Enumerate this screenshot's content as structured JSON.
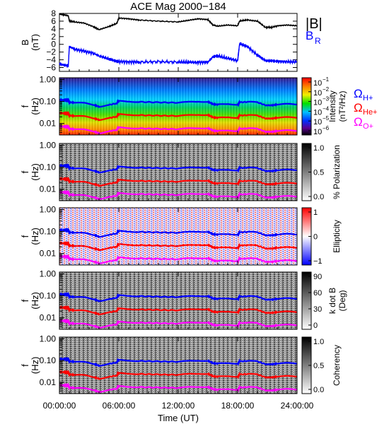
{
  "figure": {
    "title": "ACE Mag 2000−184",
    "xlabel": "Time (UT)",
    "xticks": [
      "00:00:00",
      "06:00:00",
      "12:00:00",
      "18:00:00",
      "24:00:00"
    ]
  },
  "chart_data": [
    {
      "type": "line",
      "ylabel": "B",
      "yunit": "(nT)",
      "ylim": [
        -7,
        8
      ],
      "yticks": [
        "−6",
        "−4",
        "−2",
        "0",
        "2",
        "4",
        "6",
        "8"
      ],
      "xlim": [
        0,
        24
      ],
      "series": [
        {
          "name": "|B|",
          "color": "#000000",
          "x": [
            0,
            0.5,
            0.9,
            1.0,
            1.5,
            2.5,
            3.5,
            4.0,
            5.0,
            5.8,
            6.0,
            7.0,
            8.0,
            10.0,
            12.0,
            13.0,
            14.0,
            15.0,
            15.5,
            16.0,
            17.0,
            18.0,
            18.2,
            19.0,
            20.0,
            20.8,
            21.5,
            22.0,
            23.0,
            24.0
          ],
          "y": [
            7.8,
            7.6,
            7.4,
            6.0,
            5.8,
            5.5,
            4.5,
            3.8,
            4.6,
            5.4,
            6.8,
            6.6,
            6.3,
            6.0,
            5.8,
            6.2,
            6.6,
            6.4,
            5.0,
            4.7,
            5.0,
            4.8,
            6.0,
            6.3,
            6.0,
            4.4,
            4.4,
            4.8,
            5.0,
            4.8
          ]
        },
        {
          "name": "B_R",
          "color": "#0000ff",
          "x": [
            0,
            0.5,
            0.9,
            1.0,
            1.5,
            2.5,
            3.5,
            4.0,
            5.0,
            5.8,
            6.0,
            7.0,
            8.0,
            10.0,
            12.0,
            13.0,
            14.0,
            15.0,
            15.5,
            16.0,
            17.0,
            18.0,
            18.2,
            19.0,
            20.0,
            20.8,
            21.5,
            22.0,
            23.0,
            24.0
          ],
          "y": [
            -5.0,
            -5.4,
            -5.6,
            -0.6,
            -1.2,
            -1.8,
            -2.4,
            -3.0,
            -3.8,
            -4.4,
            -4.5,
            -4.6,
            -4.6,
            -4.5,
            -4.6,
            -4.6,
            -4.7,
            -4.6,
            -3.2,
            -3.0,
            -3.6,
            -4.2,
            0.2,
            -0.6,
            -2.8,
            -4.2,
            -4.3,
            -4.4,
            -4.5,
            -4.5
          ]
        }
      ],
      "legend": [
        "|B|",
        "B",
        "R"
      ]
    },
    {
      "type": "heatmap",
      "ylabel": "f",
      "yunit": "(Hz)",
      "yscale": "log",
      "ylim": [
        0.003,
        1.2
      ],
      "yticks": [
        "1.00",
        "0.10",
        "0.01"
      ],
      "colormap": "rainbow",
      "colorbar": {
        "label": "Intensity",
        "unit": "(nT²/Hz)",
        "base": "10",
        "ticks": [
          "−1",
          "−2",
          "−3",
          "−4",
          "−5",
          "−6"
        ]
      },
      "gyro_legend": [
        {
          "name": "H+",
          "color": "#0000ff"
        },
        {
          "name": "He+",
          "color": "#ff0000"
        },
        {
          "name": "O+",
          "color": "#ff00ff"
        }
      ]
    },
    {
      "type": "heatmap",
      "ylabel": "f",
      "yunit": "(Hz)",
      "yscale": "log",
      "ylim": [
        0.003,
        1.2
      ],
      "yticks": [
        "1.00",
        "0.10",
        "0.01"
      ],
      "colormap": "gray",
      "colorbar": {
        "label": "% Polarization",
        "ticks": [
          "1.0",
          "0.5",
          "0.0"
        ]
      }
    },
    {
      "type": "heatmap",
      "ylabel": "f",
      "yunit": "(Hz)",
      "yscale": "log",
      "ylim": [
        0.003,
        1.2
      ],
      "yticks": [
        "1.00",
        "0.10",
        "0.01"
      ],
      "colormap": "bwr",
      "colorbar": {
        "label": "Ellipticity",
        "ticks": [
          "1",
          "0",
          "−1"
        ]
      }
    },
    {
      "type": "heatmap",
      "ylabel": "f",
      "yunit": "(Hz)",
      "yscale": "log",
      "ylim": [
        0.003,
        1.2
      ],
      "yticks": [
        "1.00",
        "0.10",
        "0.01"
      ],
      "colormap": "gray",
      "colorbar": {
        "label": "k dot B",
        "unit": "(Deg)",
        "ticks": [
          "90",
          "60",
          "30",
          "0"
        ]
      }
    },
    {
      "type": "heatmap",
      "ylabel": "f",
      "yunit": "(Hz)",
      "yscale": "log",
      "ylim": [
        0.003,
        1.2
      ],
      "yticks": [
        "1.00",
        "0.10",
        "0.01"
      ],
      "colormap": "gray",
      "colorbar": {
        "label": "Coherency",
        "ticks": [
          "1.0",
          "0.5",
          "0.0"
        ]
      }
    }
  ],
  "gyro_lines": {
    "x": [
      0,
      0.5,
      0.9,
      1.0,
      1.5,
      2.5,
      3.5,
      4.0,
      5.0,
      5.8,
      6.0,
      7.0,
      8.0,
      10.0,
      12.0,
      13.0,
      14.0,
      15.0,
      15.5,
      16.0,
      17.0,
      18.0,
      18.2,
      19.0,
      20.0,
      20.8,
      21.5,
      22.0,
      23.0,
      24.0
    ],
    "H+": [
      0.118,
      0.116,
      0.113,
      0.092,
      0.089,
      0.084,
      0.069,
      0.058,
      0.07,
      0.082,
      0.104,
      0.1,
      0.096,
      0.091,
      0.088,
      0.094,
      0.1,
      0.097,
      0.076,
      0.072,
      0.076,
      0.073,
      0.091,
      0.096,
      0.091,
      0.067,
      0.067,
      0.073,
      0.076,
      0.073
    ],
    "He+": [
      0.03,
      0.029,
      0.028,
      0.023,
      0.022,
      0.021,
      0.017,
      0.0146,
      0.0176,
      0.0206,
      0.026,
      0.025,
      0.024,
      0.0228,
      0.022,
      0.0236,
      0.025,
      0.0244,
      0.019,
      0.018,
      0.019,
      0.0183,
      0.0228,
      0.024,
      0.0228,
      0.0168,
      0.0168,
      0.0183,
      0.019,
      0.0183
    ],
    "O+": [
      0.0074,
      0.0072,
      0.007,
      0.0057,
      0.0055,
      0.0052,
      0.0043,
      0.0036,
      0.0044,
      0.0051,
      0.0065,
      0.0062,
      0.006,
      0.0057,
      0.0055,
      0.0059,
      0.0062,
      0.0061,
      0.0048,
      0.0045,
      0.0048,
      0.0046,
      0.0057,
      0.006,
      0.0057,
      0.0042,
      0.0042,
      0.0046,
      0.0048,
      0.0046
    ]
  },
  "colors": {
    "H+": "#0000ff",
    "He+": "#ff0000",
    "O+": "#ff00ff",
    "BR": "#0000ff",
    "Bmag": "#000000"
  }
}
